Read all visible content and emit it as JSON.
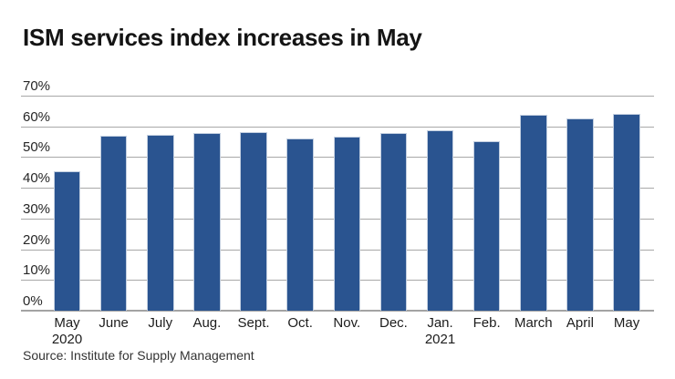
{
  "title": "ISM services index increases in May",
  "source": "Source: Institute for Supply Management",
  "colors": {
    "background": "#ffffff",
    "bar_fill": "#2a5490",
    "bar_stroke": "#c3cfe0",
    "gridline": "#a8a8a8",
    "axis_line": "#a3a3a3",
    "title_text": "#141414",
    "tick_text": "#262626",
    "source_text": "#333333"
  },
  "chart_data": {
    "type": "bar",
    "title": "ISM services index increases in May",
    "xlabel": "",
    "ylabel": "",
    "ylim": [
      0,
      70
    ],
    "grid": true,
    "legend": false,
    "categories": [
      "May",
      "June",
      "July",
      "Aug.",
      "Sept.",
      "Oct.",
      "Nov.",
      "Dec.",
      "Jan.",
      "Feb.",
      "March",
      "April",
      "May"
    ],
    "category_year_lines": [
      {
        "index": 0,
        "text": "2020"
      },
      {
        "index": 8,
        "text": "2021"
      }
    ],
    "values": [
      45.4,
      56.9,
      57.1,
      57.8,
      58.0,
      56.1,
      56.8,
      57.8,
      58.7,
      55.3,
      63.7,
      62.7,
      64.0
    ],
    "yticks": [
      {
        "value": 70,
        "label": "70%"
      },
      {
        "value": 60,
        "label": "60%"
      },
      {
        "value": 50,
        "label": "50%"
      },
      {
        "value": 40,
        "label": "40%"
      },
      {
        "value": 30,
        "label": "30%"
      },
      {
        "value": 20,
        "label": "20%"
      },
      {
        "value": 10,
        "label": "10%"
      },
      {
        "value": 0,
        "label": "0%"
      }
    ]
  }
}
